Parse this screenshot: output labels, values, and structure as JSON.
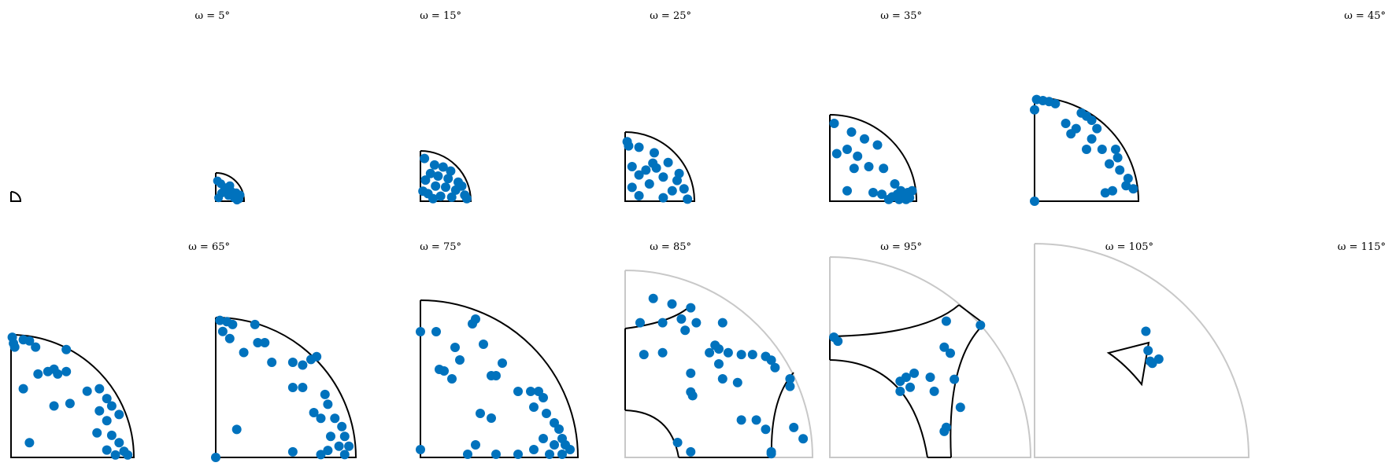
{
  "chart_data": {
    "type": "scatter",
    "marker_color": "#0072BD",
    "outline_color": "#000000",
    "reference_outline_color": "#c8c8c8",
    "panels": [
      {
        "title": "",
        "omega": 0,
        "points": []
      },
      {
        "title": "ω = 5°",
        "omega": 5,
        "points": [
          [
            0.06,
            0.72
          ],
          [
            0.18,
            0.62
          ],
          [
            0.3,
            0.4
          ],
          [
            0.55,
            0.35
          ],
          [
            0.72,
            0.3
          ],
          [
            0.2,
            0.28
          ],
          [
            0.45,
            0.2
          ],
          [
            0.65,
            0.12
          ],
          [
            0.82,
            0.08
          ],
          [
            0.1,
            0.12
          ],
          [
            0.35,
            0.48
          ],
          [
            0.5,
            0.55
          ],
          [
            0.86,
            0.22
          ],
          [
            0.75,
            0.04
          ]
        ]
      },
      {
        "title": "ω = 15°",
        "omega": 15,
        "points": [
          [
            0.08,
            0.85
          ],
          [
            0.28,
            0.72
          ],
          [
            0.45,
            0.68
          ],
          [
            0.6,
            0.6
          ],
          [
            0.2,
            0.55
          ],
          [
            0.35,
            0.5
          ],
          [
            0.55,
            0.45
          ],
          [
            0.75,
            0.38
          ],
          [
            0.1,
            0.42
          ],
          [
            0.3,
            0.3
          ],
          [
            0.5,
            0.28
          ],
          [
            0.7,
            0.22
          ],
          [
            0.88,
            0.12
          ],
          [
            0.15,
            0.15
          ],
          [
            0.4,
            0.1
          ],
          [
            0.62,
            0.08
          ],
          [
            0.92,
            0.05
          ],
          [
            0.05,
            0.2
          ],
          [
            0.82,
            0.3
          ],
          [
            0.25,
            0.05
          ]
        ]
      },
      {
        "title": "ω = 25°",
        "omega": 25,
        "points": [
          [
            0.03,
            0.86
          ],
          [
            0.05,
            0.8
          ],
          [
            0.2,
            0.78
          ],
          [
            0.42,
            0.7
          ],
          [
            0.62,
            0.56
          ],
          [
            0.1,
            0.5
          ],
          [
            0.3,
            0.45
          ],
          [
            0.45,
            0.48
          ],
          [
            0.2,
            0.38
          ],
          [
            0.55,
            0.35
          ],
          [
            0.75,
            0.3
          ],
          [
            0.85,
            0.18
          ],
          [
            0.68,
            0.15
          ],
          [
            0.35,
            0.25
          ],
          [
            0.1,
            0.2
          ],
          [
            0.2,
            0.08
          ],
          [
            0.55,
            0.05
          ],
          [
            0.9,
            0.03
          ],
          [
            0.78,
            0.4
          ],
          [
            0.4,
            0.55
          ]
        ]
      },
      {
        "title": "ω = 35°",
        "omega": 35,
        "points": [
          [
            0.05,
            0.9
          ],
          [
            0.25,
            0.8
          ],
          [
            0.4,
            0.72
          ],
          [
            0.55,
            0.65
          ],
          [
            0.08,
            0.55
          ],
          [
            0.2,
            0.6
          ],
          [
            0.32,
            0.52
          ],
          [
            0.45,
            0.4
          ],
          [
            0.28,
            0.38
          ],
          [
            0.62,
            0.38
          ],
          [
            0.75,
            0.2
          ],
          [
            0.82,
            0.12
          ],
          [
            0.9,
            0.1
          ],
          [
            0.72,
            0.05
          ],
          [
            0.6,
            0.08
          ],
          [
            0.92,
            0.04
          ],
          [
            0.85,
            0.05
          ],
          [
            0.8,
            0.02
          ],
          [
            0.68,
            0.02
          ],
          [
            0.5,
            0.1
          ],
          [
            0.2,
            0.12
          ],
          [
            0.95,
            0.12
          ],
          [
            0.78,
            0.08
          ],
          [
            0.88,
            0.02
          ]
        ]
      },
      {
        "title": "ω = 45°",
        "omega": 45,
        "points": [
          [
            0.02,
            0.98
          ],
          [
            0.08,
            0.97
          ],
          [
            0.14,
            0.96
          ],
          [
            0.2,
            0.94
          ],
          [
            0.0,
            0.88
          ],
          [
            0.45,
            0.85
          ],
          [
            0.5,
            0.82
          ],
          [
            0.55,
            0.78
          ],
          [
            0.3,
            0.75
          ],
          [
            0.4,
            0.7
          ],
          [
            0.35,
            0.65
          ],
          [
            0.6,
            0.7
          ],
          [
            0.55,
            0.6
          ],
          [
            0.5,
            0.5
          ],
          [
            0.65,
            0.5
          ],
          [
            0.78,
            0.5
          ],
          [
            0.8,
            0.42
          ],
          [
            0.72,
            0.36
          ],
          [
            0.82,
            0.3
          ],
          [
            0.9,
            0.22
          ],
          [
            0.88,
            0.15
          ],
          [
            0.75,
            0.1
          ],
          [
            0.68,
            0.08
          ],
          [
            0.95,
            0.12
          ],
          [
            0.0,
            0.0
          ]
        ]
      },
      {
        "title": "ω = 65°",
        "omega": 65,
        "points": [
          [
            0.01,
            0.98
          ],
          [
            0.02,
            0.93
          ],
          [
            0.03,
            0.9
          ],
          [
            0.1,
            0.96
          ],
          [
            0.15,
            0.95
          ],
          [
            0.2,
            0.9
          ],
          [
            0.45,
            0.88
          ],
          [
            0.22,
            0.68
          ],
          [
            0.3,
            0.7
          ],
          [
            0.35,
            0.72
          ],
          [
            0.38,
            0.68
          ],
          [
            0.45,
            0.7
          ],
          [
            0.1,
            0.56
          ],
          [
            0.35,
            0.42
          ],
          [
            0.48,
            0.44
          ],
          [
            0.62,
            0.54
          ],
          [
            0.72,
            0.56
          ],
          [
            0.78,
            0.48
          ],
          [
            0.82,
            0.42
          ],
          [
            0.72,
            0.38
          ],
          [
            0.78,
            0.3
          ],
          [
            0.88,
            0.35
          ],
          [
            0.7,
            0.2
          ],
          [
            0.82,
            0.18
          ],
          [
            0.88,
            0.12
          ],
          [
            0.78,
            0.06
          ],
          [
            0.92,
            0.05
          ],
          [
            0.95,
            0.02
          ],
          [
            0.85,
            0.02
          ],
          [
            0.15,
            0.12
          ]
        ]
      },
      {
        "title": "ω = 75°",
        "omega": 75,
        "points": [
          [
            0.03,
            0.98
          ],
          [
            0.08,
            0.97
          ],
          [
            0.12,
            0.95
          ],
          [
            0.28,
            0.95
          ],
          [
            0.05,
            0.9
          ],
          [
            0.1,
            0.85
          ],
          [
            0.3,
            0.82
          ],
          [
            0.35,
            0.82
          ],
          [
            0.2,
            0.75
          ],
          [
            0.4,
            0.68
          ],
          [
            0.55,
            0.68
          ],
          [
            0.62,
            0.66
          ],
          [
            0.68,
            0.7
          ],
          [
            0.72,
            0.72
          ],
          [
            0.55,
            0.5
          ],
          [
            0.62,
            0.5
          ],
          [
            0.78,
            0.45
          ],
          [
            0.8,
            0.38
          ],
          [
            0.7,
            0.32
          ],
          [
            0.75,
            0.28
          ],
          [
            0.85,
            0.28
          ],
          [
            0.9,
            0.22
          ],
          [
            0.82,
            0.15
          ],
          [
            0.92,
            0.15
          ],
          [
            0.95,
            0.08
          ],
          [
            0.88,
            0.08
          ],
          [
            0.8,
            0.05
          ],
          [
            0.75,
            0.02
          ],
          [
            0.92,
            0.02
          ],
          [
            0.55,
            0.04
          ],
          [
            0.15,
            0.2
          ],
          [
            0.0,
            0.0
          ]
        ]
      },
      {
        "title": "ω = 85°",
        "omega": 85,
        "points": [
          [
            0.0,
            0.8
          ],
          [
            0.1,
            0.8
          ],
          [
            0.35,
            0.88
          ],
          [
            0.33,
            0.85
          ],
          [
            0.22,
            0.7
          ],
          [
            0.25,
            0.62
          ],
          [
            0.4,
            0.72
          ],
          [
            0.12,
            0.56
          ],
          [
            0.15,
            0.55
          ],
          [
            0.2,
            0.5
          ],
          [
            0.45,
            0.52
          ],
          [
            0.48,
            0.52
          ],
          [
            0.52,
            0.6
          ],
          [
            0.62,
            0.42
          ],
          [
            0.7,
            0.42
          ],
          [
            0.72,
            0.32
          ],
          [
            0.78,
            0.38
          ],
          [
            0.75,
            0.42
          ],
          [
            0.8,
            0.28
          ],
          [
            0.85,
            0.22
          ],
          [
            0.88,
            0.18
          ],
          [
            0.9,
            0.12
          ],
          [
            0.92,
            0.08
          ],
          [
            0.95,
            0.05
          ],
          [
            0.85,
            0.08
          ],
          [
            0.78,
            0.12
          ],
          [
            0.72,
            0.05
          ],
          [
            0.62,
            0.02
          ],
          [
            0.48,
            0.02
          ],
          [
            0.35,
            0.08
          ],
          [
            0.3,
            0.02
          ],
          [
            0.38,
            0.28
          ],
          [
            0.45,
            0.25
          ],
          [
            0.82,
            0.02
          ],
          [
            0.9,
            0.02
          ],
          [
            0.0,
            0.05
          ]
        ]
      },
      {
        "title": "ω = 95°",
        "omega": 95,
        "points": [
          [
            0.15,
            0.85
          ],
          [
            0.25,
            0.82
          ],
          [
            0.35,
            0.8
          ],
          [
            0.08,
            0.72
          ],
          [
            0.2,
            0.72
          ],
          [
            0.3,
            0.74
          ],
          [
            0.38,
            0.72
          ],
          [
            0.32,
            0.68
          ],
          [
            0.52,
            0.72
          ],
          [
            0.48,
            0.6
          ],
          [
            0.55,
            0.56
          ],
          [
            0.1,
            0.55
          ],
          [
            0.2,
            0.56
          ],
          [
            0.45,
            0.56
          ],
          [
            0.5,
            0.58
          ],
          [
            0.62,
            0.55
          ],
          [
            0.68,
            0.55
          ],
          [
            0.75,
            0.54
          ],
          [
            0.78,
            0.52
          ],
          [
            0.8,
            0.48
          ],
          [
            0.88,
            0.42
          ],
          [
            0.88,
            0.38
          ],
          [
            0.35,
            0.45
          ],
          [
            0.5,
            0.5
          ],
          [
            0.52,
            0.42
          ],
          [
            0.6,
            0.4
          ],
          [
            0.35,
            0.35
          ],
          [
            0.36,
            0.33
          ],
          [
            0.62,
            0.2
          ],
          [
            0.7,
            0.2
          ],
          [
            0.75,
            0.15
          ],
          [
            0.9,
            0.16
          ],
          [
            0.95,
            0.1
          ],
          [
            0.28,
            0.08
          ],
          [
            0.35,
            0.03
          ],
          [
            0.78,
            0.03
          ],
          [
            0.78,
            0.02
          ]
        ]
      },
      {
        "title": "ω = 105°",
        "omega": 105,
        "points": [
          [
            0.02,
            0.6
          ],
          [
            0.04,
            0.58
          ],
          [
            0.58,
            0.68
          ],
          [
            0.75,
            0.66
          ],
          [
            0.57,
            0.55
          ],
          [
            0.6,
            0.52
          ],
          [
            0.42,
            0.42
          ],
          [
            0.38,
            0.4
          ],
          [
            0.5,
            0.4
          ],
          [
            0.35,
            0.38
          ],
          [
            0.4,
            0.35
          ],
          [
            0.62,
            0.39
          ],
          [
            0.35,
            0.33
          ],
          [
            0.52,
            0.33
          ],
          [
            0.65,
            0.25
          ],
          [
            0.58,
            0.15
          ],
          [
            0.57,
            0.13
          ]
        ]
      },
      {
        "title": "ω = 115°",
        "omega": 115,
        "points": [
          [
            0.52,
            0.59
          ],
          [
            0.53,
            0.5
          ],
          [
            0.54,
            0.45
          ],
          [
            0.58,
            0.46
          ],
          [
            0.55,
            0.44
          ]
        ]
      }
    ]
  }
}
